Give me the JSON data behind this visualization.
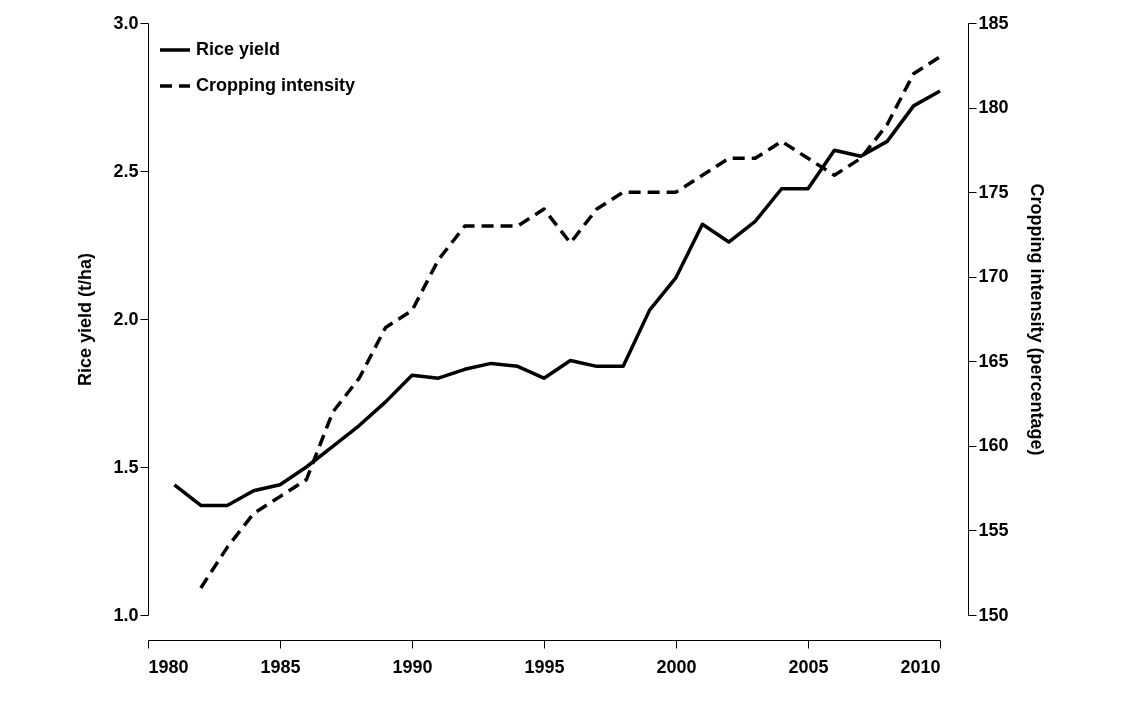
{
  "chart_data": {
    "type": "line",
    "ylabel": "Rice yield (t/ha)",
    "y2label": "Cropping intensity (percentage)",
    "xlim": [
      1980,
      2010
    ],
    "xticks": [
      1980,
      1985,
      1990,
      1995,
      2000,
      2005,
      2010
    ],
    "ylim": [
      1,
      3
    ],
    "yticks": [
      {
        "value": 1,
        "label": "1.0"
      },
      1.5,
      {
        "value": 2,
        "label": "2.0"
      },
      2.5,
      {
        "value": 3,
        "label": "3.0"
      }
    ],
    "y2lim": [
      150,
      185
    ],
    "y2ticks": [
      150,
      155,
      160,
      165,
      170,
      175,
      180,
      185
    ],
    "legend": "top left",
    "grid": false,
    "series": [
      {
        "name": "Rice yield",
        "color": "#000000",
        "line_style": "solid",
        "x": [
          1981,
          1982,
          1983,
          1984,
          1985,
          1986,
          1987,
          1988,
          1989,
          1990,
          1991,
          1992,
          1993,
          1994,
          1995,
          1996,
          1997,
          1998,
          1999,
          2000,
          2001,
          2002,
          2003,
          2004,
          2005,
          2006,
          2007,
          2008,
          2009,
          2010
        ],
        "values": [
          1.44,
          1.37,
          1.37,
          1.42,
          1.44,
          1.5,
          1.57,
          1.64,
          1.72,
          1.81,
          1.8,
          1.83,
          1.85,
          1.84,
          1.8,
          1.86,
          1.84,
          1.84,
          2.03,
          2.14,
          2.32,
          2.26,
          2.33,
          2.44,
          2.44,
          2.57,
          2.55,
          2.6,
          2.72,
          2.77
        ]
      },
      {
        "name": "Cropping intensity",
        "color": "#000000",
        "line_style": "dashed",
        "axis": "y2",
        "x": [
          1982,
          1983,
          1984,
          1985,
          1986,
          1987,
          1988,
          1989,
          1990,
          1991,
          1992,
          1993,
          1994,
          1995,
          1996,
          1997,
          1998,
          1999,
          2000,
          2001,
          2002,
          2003,
          2004,
          2005,
          2006,
          2007,
          2008,
          2009,
          2010
        ],
        "values": [
          151.6,
          154,
          156,
          157,
          158,
          162,
          164,
          167,
          168,
          171,
          173,
          173,
          173,
          174,
          172,
          174,
          175,
          175,
          175,
          176,
          177,
          177,
          178,
          177,
          176,
          177,
          179,
          182,
          183
        ]
      }
    ]
  }
}
